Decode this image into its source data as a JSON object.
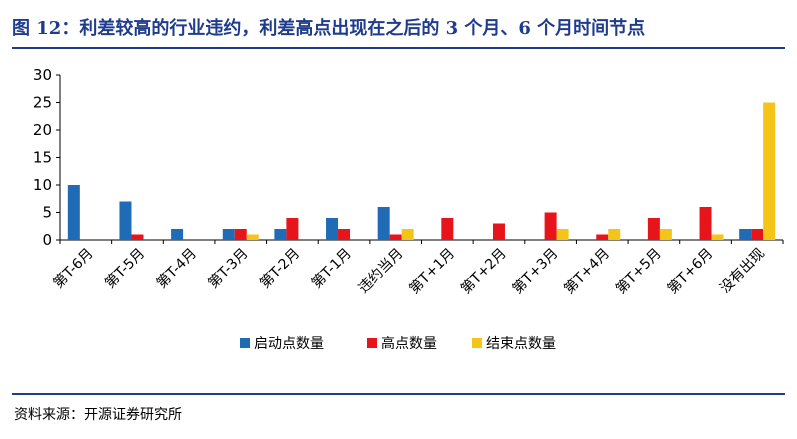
{
  "title": "图 12：利差较高的行业违约，利差高点出现在之后的 3 个月、6 个月时间节点",
  "source": "资料来源：开源证券研究所",
  "chart_data": {
    "type": "bar",
    "categories": [
      "第T-6月",
      "第T-5月",
      "第T-4月",
      "第T-3月",
      "第T-2月",
      "第T-1月",
      "违约当月",
      "第T+1月",
      "第T+2月",
      "第T+3月",
      "第T+4月",
      "第T+5月",
      "第T+6月",
      "没有出现"
    ],
    "series": [
      {
        "name": "启动点数量",
        "color": "#1f6bb5",
        "values": [
          10,
          7,
          2,
          2,
          2,
          4,
          6,
          0,
          0,
          0,
          0,
          0,
          0,
          2
        ]
      },
      {
        "name": "高点数量",
        "color": "#e8141b",
        "values": [
          0,
          1,
          0,
          2,
          4,
          2,
          1,
          4,
          3,
          5,
          1,
          4,
          6,
          2
        ]
      },
      {
        "name": "结束点数量",
        "color": "#f5c418",
        "values": [
          0,
          0,
          0,
          1,
          0,
          0,
          2,
          0,
          0,
          2,
          2,
          2,
          1,
          25
        ]
      }
    ],
    "ylim": [
      0,
      30
    ],
    "yticks": [
      0,
      5,
      10,
      15,
      20,
      25,
      30
    ],
    "legend_position": "bottom"
  }
}
